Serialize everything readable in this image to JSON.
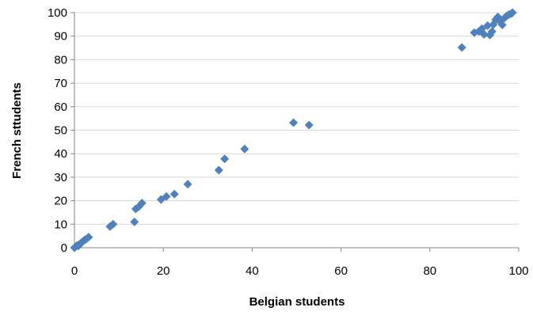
{
  "chart_data": {
    "type": "scatter",
    "title": "",
    "xlabel": "Belgian students",
    "ylabel": "French sttudents",
    "xlim": [
      0,
      100
    ],
    "ylim": [
      0,
      100
    ],
    "x_ticks": [
      0,
      20,
      40,
      60,
      80,
      100
    ],
    "y_ticks": [
      0,
      10,
      20,
      30,
      40,
      50,
      60,
      70,
      80,
      90,
      100
    ],
    "grid": "horizontal major gridlines",
    "legend": "none",
    "marker": "diamond",
    "color": "#4f81bd",
    "series": [
      {
        "points": [
          [
            0.0,
            0.0
          ],
          [
            0.3,
            0.5
          ],
          [
            0.6,
            1.0
          ],
          [
            0.9,
            0.8
          ],
          [
            1.2,
            1.6
          ],
          [
            1.5,
            2.0
          ],
          [
            1.8,
            2.5
          ],
          [
            2.2,
            3.2
          ],
          [
            2.6,
            3.6
          ],
          [
            3.2,
            4.5
          ],
          [
            8.0,
            9.0
          ],
          [
            8.7,
            10.0
          ],
          [
            13.5,
            11.0
          ],
          [
            13.8,
            16.5
          ],
          [
            14.5,
            17.5
          ],
          [
            15.2,
            19.0
          ],
          [
            19.5,
            20.5
          ],
          [
            20.7,
            21.8
          ],
          [
            22.5,
            22.8
          ],
          [
            25.5,
            27.0
          ],
          [
            32.5,
            33.0
          ],
          [
            33.8,
            37.8
          ],
          [
            38.3,
            42.0
          ],
          [
            49.3,
            53.2
          ],
          [
            52.8,
            52.2
          ],
          [
            87.2,
            85.2
          ],
          [
            90.0,
            91.5
          ],
          [
            91.0,
            92.0
          ],
          [
            91.7,
            93.2
          ],
          [
            92.2,
            90.8
          ],
          [
            93.0,
            94.5
          ],
          [
            93.5,
            90.5
          ],
          [
            94.0,
            92.0
          ],
          [
            94.3,
            95.0
          ],
          [
            94.8,
            97.0
          ],
          [
            95.3,
            98.2
          ],
          [
            95.8,
            96.2
          ],
          [
            96.3,
            94.8
          ],
          [
            96.8,
            97.8
          ],
          [
            97.3,
            98.6
          ],
          [
            97.8,
            99.2
          ],
          [
            98.3,
            99.6
          ],
          [
            98.6,
            100.0
          ]
        ]
      }
    ]
  }
}
